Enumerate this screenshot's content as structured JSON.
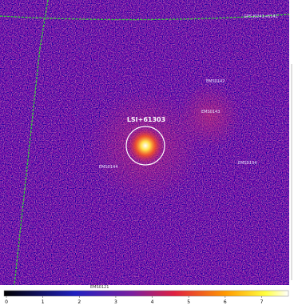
{
  "target": {
    "label": "LSI+61303"
  },
  "sources": [
    {
      "label": "EMS0142"
    },
    {
      "label": "EMS0143"
    },
    {
      "label": "EMS0134"
    },
    {
      "label": "EMS0144"
    },
    {
      "label": "EMS0121"
    },
    {
      "label": "GPS J0241+6141"
    }
  ],
  "colorbar": {
    "ticks": [
      0,
      1,
      2,
      3,
      4,
      5,
      6,
      7
    ],
    "lim": [
      0,
      7.8
    ]
  }
}
